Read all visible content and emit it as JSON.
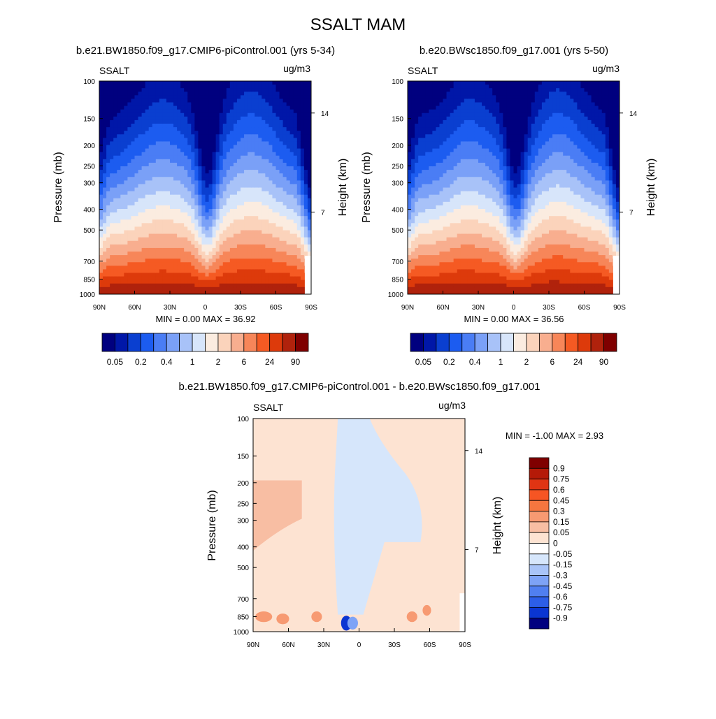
{
  "figure_title": "SSALT MAM",
  "chart_data": [
    {
      "type": "heatmap",
      "panel_title": "b.e21.BW1850.f09_g17.CMIP6-piControl.001 (yrs 5-34)",
      "variable": "SSALT",
      "units": "ug/m3",
      "ylabel": "Pressure (mb)",
      "ylabel_right": "Height (km)",
      "xticks": [
        "90N",
        "60N",
        "30N",
        "0",
        "30S",
        "60S",
        "90S"
      ],
      "yticks": [
        "100",
        "150",
        "200",
        "250",
        "300",
        "400",
        "500",
        "700",
        "850",
        "1000"
      ],
      "yticks_right": [
        "14",
        "7"
      ],
      "stats": "MIN =   0.00  MAX = 36.92",
      "colorbar_labels": [
        "0.05",
        "0.2",
        "0.4",
        "1",
        "2",
        "6",
        "24",
        "90"
      ],
      "max": 36.92,
      "min": 0.0
    },
    {
      "type": "heatmap",
      "panel_title": "b.e20.BWsc1850.f09_g17.001 (yrs 5-50)",
      "variable": "SSALT",
      "units": "ug/m3",
      "ylabel": "Pressure (mb)",
      "ylabel_right": "Height (km)",
      "xticks": [
        "90N",
        "60N",
        "30N",
        "0",
        "30S",
        "60S",
        "90S"
      ],
      "yticks": [
        "100",
        "150",
        "200",
        "250",
        "300",
        "400",
        "500",
        "700",
        "850",
        "1000"
      ],
      "yticks_right": [
        "14",
        "7"
      ],
      "stats": "MIN =   0.00  MAX = 36.56",
      "colorbar_labels": [
        "0.05",
        "0.2",
        "0.4",
        "1",
        "2",
        "6",
        "24",
        "90"
      ],
      "max": 36.56,
      "min": 0.0
    },
    {
      "type": "heatmap",
      "panel_title": "b.e21.BW1850.f09_g17.CMIP6-piControl.001 - b.e20.BWsc1850.f09_g17.001",
      "variable": "SSALT",
      "units": "ug/m3",
      "ylabel": "Pressure (mb)",
      "ylabel_right": "Height (km)",
      "xticks": [
        "90N",
        "60N",
        "30N",
        "0",
        "30S",
        "60S",
        "90S"
      ],
      "yticks": [
        "100",
        "150",
        "200",
        "250",
        "300",
        "400",
        "500",
        "700",
        "850",
        "1000"
      ],
      "yticks_right": [
        "14",
        "7"
      ],
      "stats": "MIN =  -1.00  MAX =   2.93",
      "colorbar_labels": [
        "0.9",
        "0.75",
        "0.6",
        "0.45",
        "0.3",
        "0.15",
        "0.05",
        "0",
        "-0.05",
        "-0.15",
        "-0.3",
        "-0.45",
        "-0.6",
        "-0.75",
        "-0.9"
      ],
      "min": -1.0,
      "max": 2.93
    }
  ],
  "colors": {
    "seq": [
      "#00007f",
      "#0017a8",
      "#0a3fd0",
      "#1c5cf0",
      "#4a7df5",
      "#7aa0f7",
      "#a8c2f8",
      "#d7e5fa",
      "#fbece0",
      "#fbd3bb",
      "#f8ae8f",
      "#f78659",
      "#f55a23",
      "#dd3a0b",
      "#b0220c",
      "#7f0000"
    ],
    "diff": [
      "#7f0000",
      "#b51a08",
      "#e03413",
      "#f65523",
      "#f5763f",
      "#f79a72",
      "#f8bea3",
      "#fde3d2",
      "#ffffff",
      "#d6e6fb",
      "#a9c4f8",
      "#7ea3f6",
      "#507ff0",
      "#2c5ee8",
      "#0a35d2",
      "#001aa8",
      "#00007f"
    ],
    "diff_pos": "#fde3d2",
    "diff_neg": "#d6e6fb"
  }
}
